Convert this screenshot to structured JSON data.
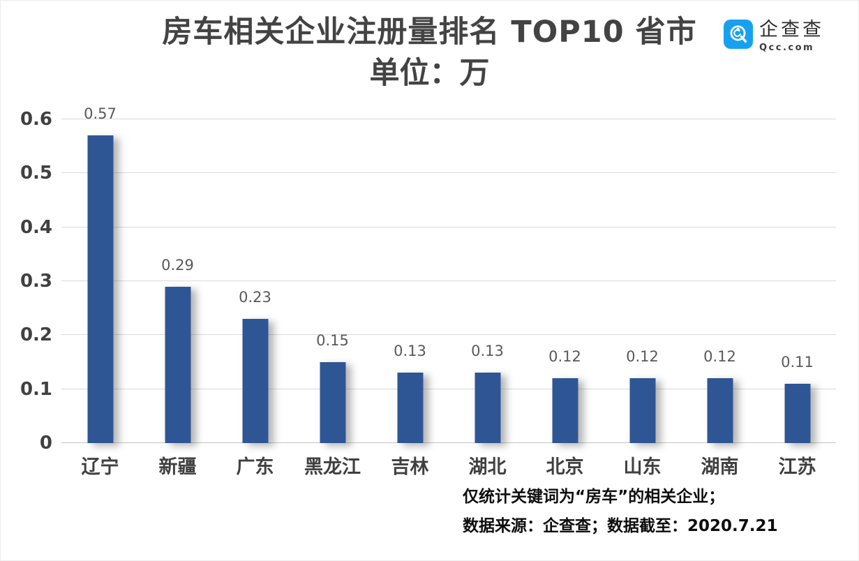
{
  "title": {
    "line1": "房车相关企业注册量排名 TOP10 省市",
    "line2": "单位：万"
  },
  "logo": {
    "name": "企查查",
    "domain": "Qcc.com",
    "icon_color": "#18a0f0"
  },
  "chart_data": {
    "type": "bar",
    "title": "房车相关企业注册量排名 TOP10 省市",
    "subtitle": "单位：万",
    "categories": [
      "辽宁",
      "新疆",
      "广东",
      "黑龙江",
      "吉林",
      "湖北",
      "北京",
      "山东",
      "湖南",
      "江苏"
    ],
    "values": [
      0.57,
      0.29,
      0.23,
      0.15,
      0.13,
      0.13,
      0.12,
      0.12,
      0.12,
      0.11
    ],
    "xlabel": "",
    "ylabel": "",
    "ylim": [
      0,
      0.6
    ],
    "yticks": [
      0,
      0.1,
      0.2,
      0.3,
      0.4,
      0.5,
      0.6
    ],
    "grid": true,
    "legend": "none",
    "bar_color": "#2f5694",
    "gridline_color": "#d9d9d9",
    "baseline_color": "#c3c3c3",
    "tick_label_color": "#404040",
    "value_label_color": "#595959"
  },
  "footer": {
    "line1": "仅统计关键词为“房车”的相关企业；",
    "line2": "数据来源：企查查；数据截至：2020.7.21"
  }
}
